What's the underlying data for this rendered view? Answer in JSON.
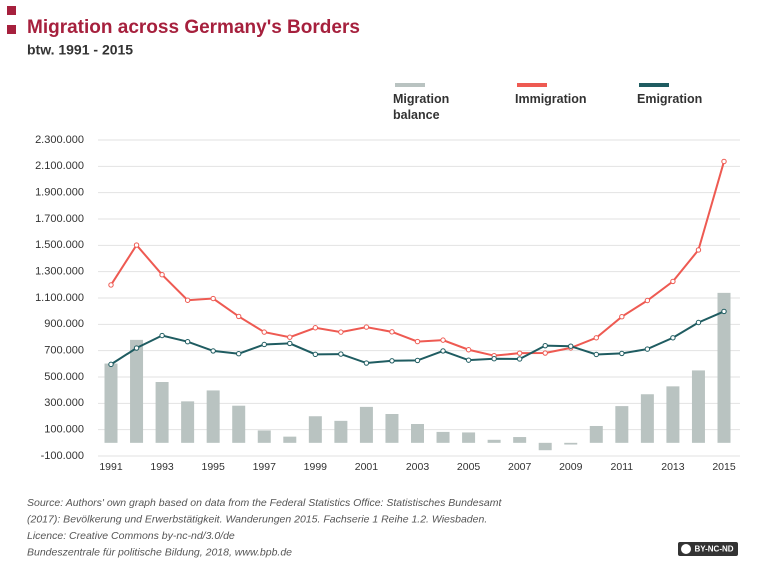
{
  "chart_data": {
    "type": "bar",
    "title": "Migration across Germany's Borders",
    "subtitle": "btw. 1991 - 2015",
    "categories": [
      "1991",
      null,
      "1993",
      null,
      "1995",
      null,
      "1997",
      null,
      "1999",
      null,
      "2001",
      null,
      "2003",
      null,
      "2005",
      null,
      "2007",
      null,
      "2009",
      null,
      "2011",
      null,
      "2013",
      null,
      "2015"
    ],
    "series": [
      {
        "name": "Migration balance",
        "type": "bar",
        "color": "#b9c3c1",
        "values": [
          602000,
          782000,
          462000,
          315000,
          398000,
          282000,
          94000,
          47000,
          202000,
          167000,
          273000,
          219000,
          143000,
          83000,
          79000,
          23000,
          44000,
          -56000,
          -13000,
          128000,
          279000,
          369000,
          429000,
          550000,
          1139000
        ]
      },
      {
        "name": "Immigration",
        "type": "line",
        "color": "#ee5a52",
        "values": [
          1199000,
          1502000,
          1277000,
          1083000,
          1096000,
          960000,
          841000,
          802000,
          874000,
          841000,
          879000,
          843000,
          769000,
          780000,
          707000,
          662000,
          681000,
          682000,
          721000,
          798000,
          958000,
          1081000,
          1226000,
          1465000,
          2137000
        ]
      },
      {
        "name": "Emigration",
        "type": "line",
        "color": "#1f5c61",
        "values": [
          596000,
          720000,
          815000,
          768000,
          698000,
          677000,
          747000,
          755000,
          672000,
          674000,
          606000,
          623000,
          626000,
          698000,
          628000,
          639000,
          637000,
          738000,
          734000,
          671000,
          679000,
          712000,
          798000,
          914000,
          998000
        ]
      }
    ],
    "ylim": [
      -100000,
      2300000
    ],
    "yticks": [
      {
        "value": -100000,
        "label": "-100.000"
      },
      {
        "value": 100000,
        "label": "100.000"
      },
      {
        "value": 300000,
        "label": "300.000"
      },
      {
        "value": 500000,
        "label": "500.000"
      },
      {
        "value": 700000,
        "label": "700.000"
      },
      {
        "value": 900000,
        "label": "900.000"
      },
      {
        "value": 1100000,
        "label": "1.100.000"
      },
      {
        "value": 1300000,
        "label": "1.300.000"
      },
      {
        "value": 1500000,
        "label": "1.500.000"
      },
      {
        "value": 1700000,
        "label": "1.700.000"
      },
      {
        "value": 1900000,
        "label": "1.900.000"
      },
      {
        "value": 2100000,
        "label": "2.100.000"
      },
      {
        "value": 2300000,
        "label": "2.300.000"
      }
    ],
    "grid": true,
    "legend": "top",
    "source_lines": [
      "Source: Authors' own graph based on data from the Federal Statistics Office: Statistisches Bundesamt",
      "(2017): Bevölkerung und Erwerbstätigkeit. Wanderungen 2015. Fachserie 1 Reihe 1.2. Wiesbaden.",
      "Licence: Creative Commons by-nc-nd/3.0/de",
      "Bundeszentrale für politische Bildung, 2018, www.bpb.de"
    ],
    "badge": "BY-NC-ND"
  }
}
